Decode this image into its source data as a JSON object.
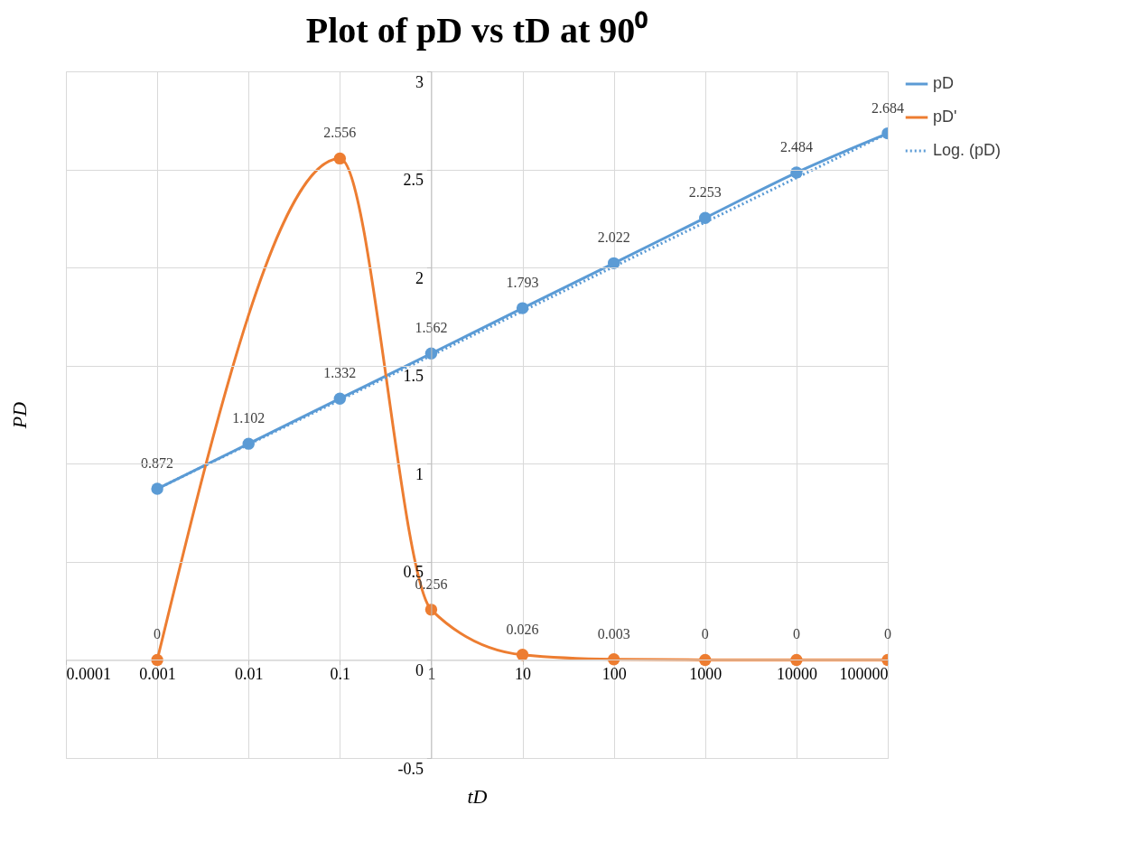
{
  "chart_data": {
    "type": "line",
    "title": "Plot of pD vs tD at 90⁰",
    "xlabel": "tD",
    "ylabel": "PD",
    "log": "x",
    "xlim": [
      0.0001,
      100000
    ],
    "xticks": [
      0.0001,
      0.001,
      0.01,
      0.1,
      1,
      10,
      100,
      1000,
      10000,
      100000
    ],
    "ylim": [
      -0.5,
      3
    ],
    "yticks": [
      -0.5,
      0,
      0.5,
      1,
      1.5,
      2,
      2.5,
      3
    ],
    "grid": true,
    "legend": "right",
    "marker": "circle",
    "x": [
      0.001,
      0.01,
      0.1,
      1,
      10,
      100,
      1000,
      10000,
      100000
    ],
    "series": [
      {
        "name": "pD",
        "color": "#5b9bd5",
        "values": [
          0.872,
          1.102,
          1.332,
          1.562,
          1.793,
          2.022,
          2.253,
          2.484,
          2.684
        ],
        "value_labels": [
          "0.872",
          "1.102",
          "1.332",
          "1.562",
          "1.793",
          "2.022",
          "2.253",
          "2.484",
          "2.684"
        ]
      },
      {
        "name": "pD'",
        "color": "#ed7d31",
        "values": [
          0,
          null,
          2.556,
          0.256,
          0.026,
          0.003,
          0,
          0,
          0
        ],
        "value_labels": [
          "0",
          null,
          "2.556",
          "0.256",
          "0.026",
          "0.003",
          "0",
          "0",
          "0"
        ]
      },
      {
        "name": "Log. (pD)",
        "color": "#5b9bd5",
        "type": "line",
        "line_style": "dotted",
        "marker": "none",
        "x": [
          0.001,
          100000
        ],
        "values": [
          0.872,
          2.684
        ]
      }
    ]
  }
}
